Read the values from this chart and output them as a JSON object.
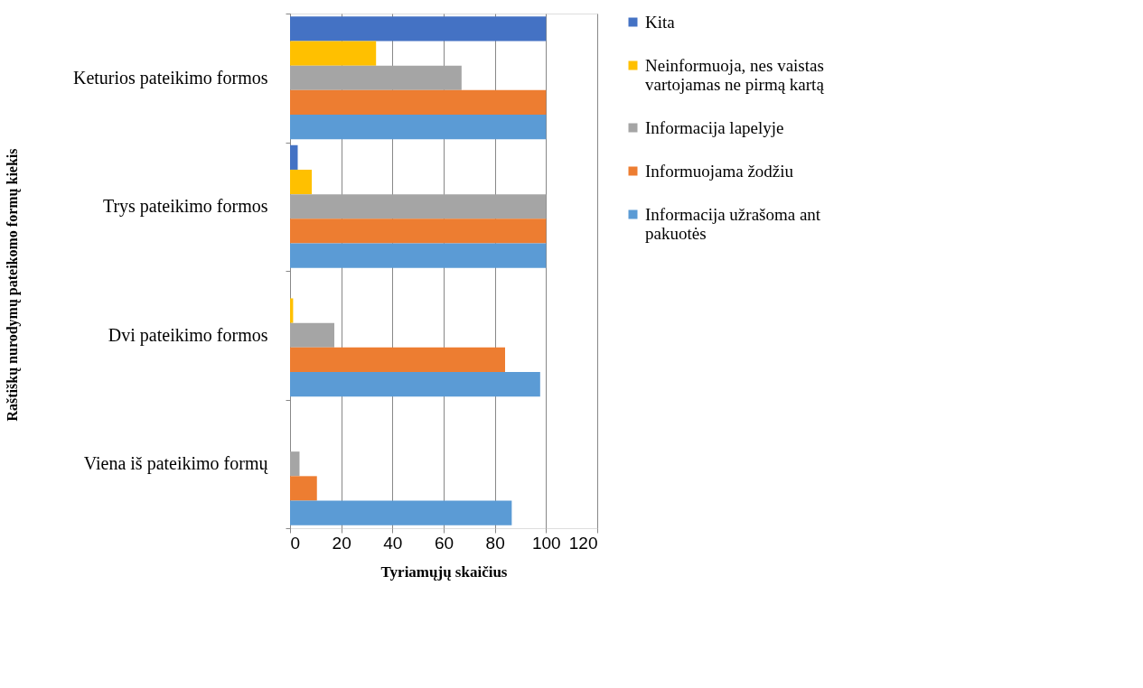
{
  "chart_data": {
    "type": "bar",
    "orientation": "horizontal",
    "xlabel": "Tyriamųjų  skaičius",
    "ylabel": "Raštiškų nurodymų pateikomo formų kiekis",
    "categories": [
      "Keturios pateikimo formos",
      "Trys pateikimo formos",
      "Dvi pateikimo formos",
      "Viena iš  pateikimo formų"
    ],
    "series": [
      {
        "name": "Kita",
        "color": "#4472c4",
        "values": [
          100,
          3,
          0,
          0
        ]
      },
      {
        "name": "Neinformuoja, nes vaistas vartojamas ne pirmą kartą",
        "color": "#ffc000",
        "values": [
          33.6,
          8.5,
          1.2,
          0
        ]
      },
      {
        "name": "Informacija lapelyje",
        "color": "#a5a5a5",
        "values": [
          67,
          100,
          17.3,
          3.7
        ]
      },
      {
        "name": "Informuojama žodžiu",
        "color": "#ed7d31",
        "values": [
          100,
          100,
          84,
          10.5
        ]
      },
      {
        "name": "Informacija užrašoma ant pakuotės",
        "color": "#5b9bd5",
        "values": [
          100,
          100,
          97.7,
          86.6
        ]
      }
    ],
    "xlim": [
      0,
      120
    ],
    "xticks": [
      0,
      20,
      40,
      60,
      80,
      100,
      120
    ],
    "grid": "x",
    "legend": "right"
  }
}
